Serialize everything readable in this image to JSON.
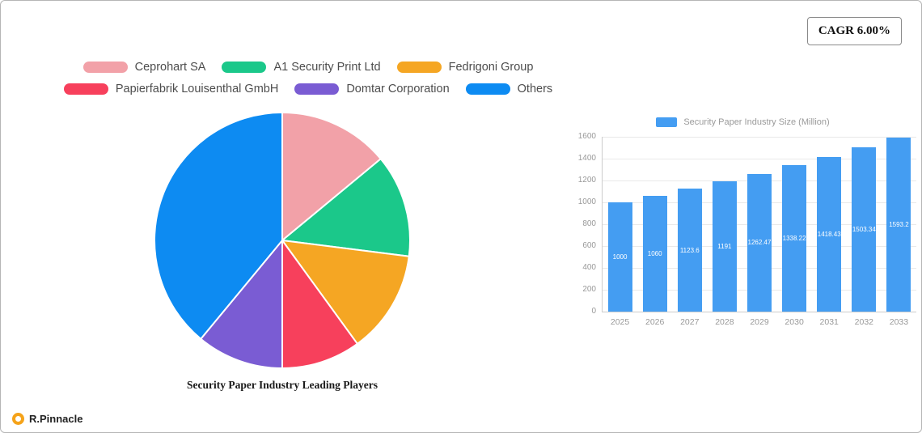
{
  "cagr_badge": "CAGR 6.00%",
  "brand": {
    "name": "R.Pinnacle"
  },
  "chart_data": [
    {
      "type": "pie",
      "title": "Security Paper Industry Leading Players",
      "legend_position": "top",
      "slices": [
        {
          "label": "Ceprohart SA",
          "value": 14,
          "color": "#F2A1A8"
        },
        {
          "label": "A1 Security Print Ltd",
          "value": 13,
          "color": "#1BC88A"
        },
        {
          "label": "Fedrigoni Group",
          "value": 13,
          "color": "#F5A623"
        },
        {
          "label": "Papierfabrik Louisenthal GmbH",
          "value": 10,
          "color": "#F7405C"
        },
        {
          "label": "Domtar Corporation",
          "value": 11,
          "color": "#7A5CD3"
        },
        {
          "label": "Others",
          "value": 39,
          "color": "#0D8BF2"
        }
      ]
    },
    {
      "type": "bar",
      "legend": "Security Paper Industry Size (Million)",
      "categories": [
        "2025",
        "2026",
        "2027",
        "2028",
        "2029",
        "2030",
        "2031",
        "2032",
        "2033"
      ],
      "values": [
        1000,
        1060,
        1123.6,
        1191,
        1262.47,
        1338.22,
        1418.43,
        1503.34,
        1593.2
      ],
      "labels": [
        "1000",
        "1060",
        "1123.6",
        "1191",
        "1262.47",
        "1338.22",
        "1418.43",
        "1503.34",
        "1593.2"
      ],
      "ylim": [
        0,
        1600
      ],
      "ytick_step": 200,
      "bar_color": "#449DF2",
      "grid": true,
      "legend_position": "top"
    }
  ]
}
